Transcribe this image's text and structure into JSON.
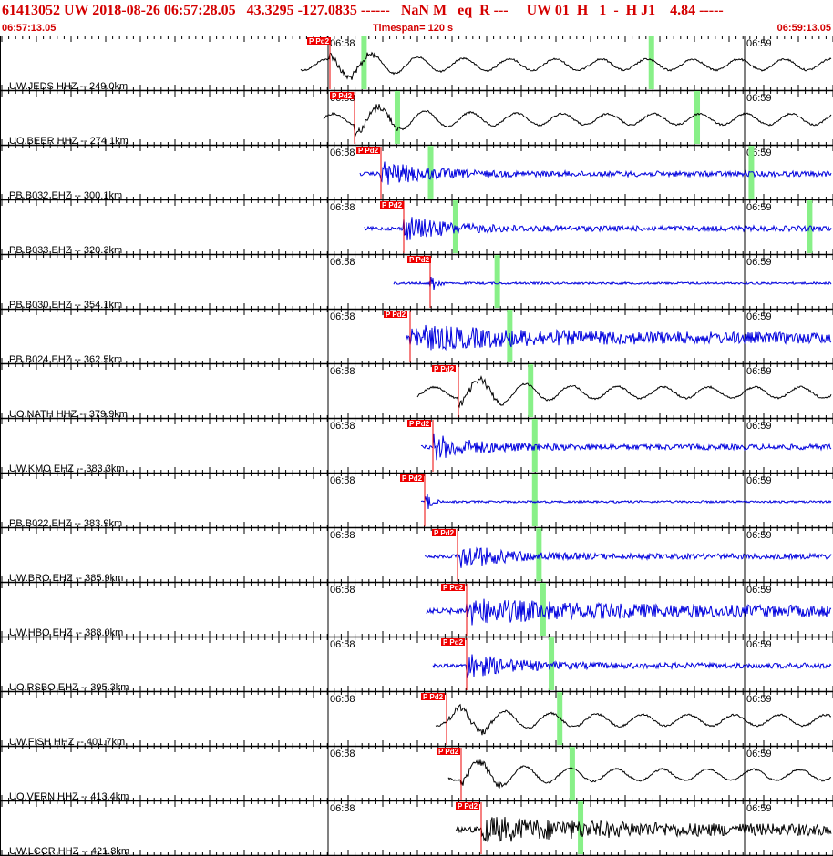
{
  "header": {
    "event_line": "61413052 UW 2018-08-26 06:57:28.05   43.3295 -127.0835 ------   NaN M   eq  R ---     UW 01  H   1  -  H J1    4.84 -----",
    "start_time": "06:57:13.05",
    "timespan": "Timespan= 120 s",
    "end_time": "06:59:13.05"
  },
  "colors": {
    "header_red": "#d40000",
    "pick_red": "#ee0000",
    "black_trace": "#000000",
    "blue_trace": "#0000dd",
    "green_marker": "#88f088"
  },
  "time_marks": {
    "first": "06:58",
    "second": "06:59"
  },
  "pick_label": "P Pd2",
  "traces": [
    {
      "label": "UW.JEDS HHZ --  249.0km",
      "color": "black",
      "greens": [
        0.065,
        0.41
      ],
      "kind": "lowfreq"
    },
    {
      "label": "UO.BEER HHZ --  274.1km",
      "color": "black",
      "greens": [
        0.105,
        0.465
      ],
      "kind": "lowfreq"
    },
    {
      "label": "PB.B032 EHZ --  300.1km",
      "color": "blue",
      "greens": [
        0.145,
        0.53
      ],
      "kind": "burst"
    },
    {
      "label": "PB.B033 EHZ --  320.3km",
      "color": "blue",
      "greens": [
        0.175,
        0.6
      ],
      "kind": "burst"
    },
    {
      "label": "PB.B030 EHZ --  354.1km",
      "color": "blue",
      "greens": [
        0.225,
        0.685
      ],
      "kind": "spike"
    },
    {
      "label": "PB.B024 EHZ --  362.5km",
      "color": "blue",
      "greens": [
        0.24,
        0.715
      ],
      "kind": "noisy"
    },
    {
      "label": "UO.NATH HHZ --  379.9km",
      "color": "black",
      "greens": [
        0.265,
        0.765
      ],
      "kind": "lowfreq"
    },
    {
      "label": "UW.KMO EHZ --  383.3km",
      "color": "blue",
      "greens": [
        0.27,
        0.77
      ],
      "kind": "burst"
    },
    {
      "label": "PB.B022 EHZ --  383.9km",
      "color": "blue",
      "greens": [
        0.27,
        0.77
      ],
      "kind": "spike"
    },
    {
      "label": "UW.BRO EHZ --  385.9km",
      "color": "blue",
      "greens": [
        0.275,
        0.775
      ],
      "kind": "burst"
    },
    {
      "label": "UW.HBO EHZ --  388.0km",
      "color": "blue",
      "greens": [
        0.28,
        0.78
      ],
      "kind": "noisy"
    },
    {
      "label": "UO.RSBO EHZ --  395.3km",
      "color": "blue",
      "greens": [
        0.29,
        0.79
      ],
      "kind": "burst"
    },
    {
      "label": "UW.FISH HHZ --  401.7km",
      "color": "black",
      "greens": [
        0.3,
        0.8
      ],
      "kind": "lowfreq"
    },
    {
      "label": "UO.VERN HHZ --  413.4km",
      "color": "black",
      "greens": [
        0.315,
        0.815
      ],
      "kind": "lowfreq"
    },
    {
      "label": "UW.LCCR HHZ --  421.8km",
      "color": "black",
      "greens": [
        0.325,
        0.825
      ],
      "kind": "noisy"
    }
  ]
}
